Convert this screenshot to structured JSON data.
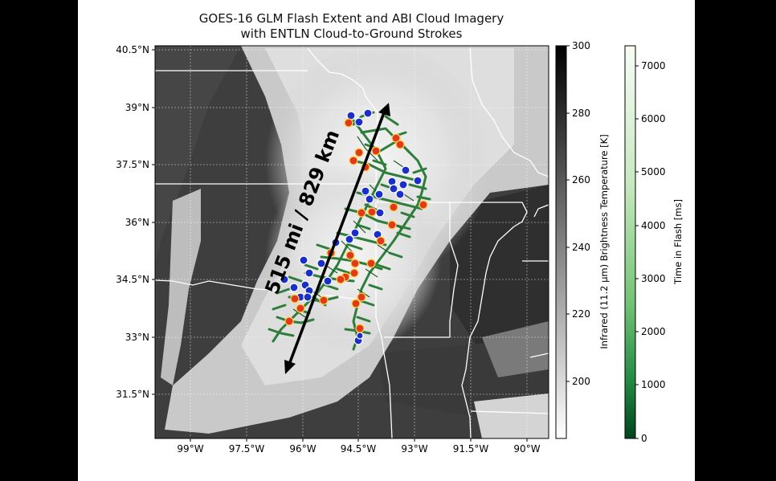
{
  "title": {
    "line1": "GOES-16 GLM Flash Extent and ABI Cloud Imagery",
    "line2": "with ENTLN Cloud-to-Ground Strokes"
  },
  "map": {
    "annotation": "515 mi / 829 km",
    "lat_ticks": [
      "40.5°N",
      "39°N",
      "37.5°N",
      "36°N",
      "34.5°N",
      "33°N",
      "31.5°N"
    ],
    "lon_ticks": [
      "99°W",
      "97.5°W",
      "96°W",
      "94.5°W",
      "93°W",
      "91.5°W",
      "90°W"
    ]
  },
  "colorbars": {
    "temperature": {
      "label": "Infrared (11.2 μm) Brightness Temperature [K]",
      "ticks": [
        "300",
        "280",
        "260",
        "240",
        "220",
        "200"
      ],
      "colors": [
        "#ffffff",
        "#000000"
      ]
    },
    "flash": {
      "label": "Time in Flash [ms]",
      "ticks": [
        "7000",
        "6000",
        "5000",
        "4000",
        "3000",
        "2000",
        "1000",
        "0"
      ],
      "colors": [
        "#f7fcf5",
        "#00441b"
      ]
    }
  },
  "legend_colors": {
    "positive_strokes": "#e03a1e",
    "negative_strokes": "#1a2fc8",
    "flash_extent": "#2e7d3a"
  }
}
